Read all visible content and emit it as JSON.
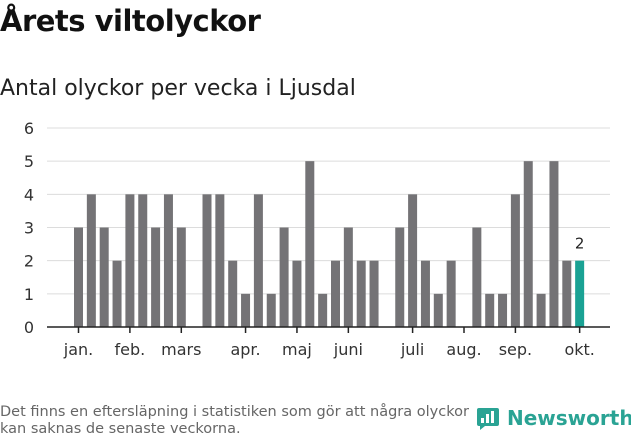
{
  "title": "Årets viltolyckor",
  "subtitle": "Antal olyckor per vecka i Ljusdal",
  "footnote": "Det finns en eftersläpning i statistiken som gör att några olyckor kan saknas de senaste veckorna.",
  "brand": {
    "name": "Newsworthy",
    "icon": "newsworthy-logo-icon",
    "color": "#2aa394"
  },
  "chart_data": {
    "type": "bar",
    "title": "Antal olyckor per vecka i Ljusdal",
    "xlabel": "",
    "ylabel": "",
    "ylim": [
      0,
      6
    ],
    "yticks": [
      0,
      1,
      2,
      3,
      4,
      5,
      6
    ],
    "grid": true,
    "legend": "none",
    "bar_color": "#747376",
    "highlight_color": "#1aa294",
    "highlight_last_label": "2",
    "categories": [
      "1",
      "2",
      "3",
      "4",
      "5",
      "6",
      "7",
      "8",
      "9",
      "10",
      "11",
      "12",
      "13",
      "14",
      "15",
      "16",
      "17",
      "18",
      "19",
      "20",
      "21",
      "22",
      "23",
      "24",
      "25",
      "26",
      "27",
      "28",
      "29",
      "30",
      "31",
      "32",
      "33",
      "34",
      "35",
      "36",
      "37",
      "38",
      "39",
      "40",
      "41"
    ],
    "values": [
      3,
      4,
      3,
      2,
      4,
      4,
      3,
      4,
      3,
      0,
      4,
      4,
      2,
      1,
      4,
      1,
      3,
      2,
      5,
      1,
      2,
      3,
      2,
      2,
      0,
      3,
      4,
      2,
      1,
      2,
      0,
      3,
      1,
      1,
      4,
      5,
      1,
      5,
      2,
      2,
      0
    ],
    "month_labels": [
      {
        "label": "jan.",
        "week": 1
      },
      {
        "label": "feb.",
        "week": 5
      },
      {
        "label": "mars",
        "week": 9
      },
      {
        "label": "apr.",
        "week": 14
      },
      {
        "label": "maj",
        "week": 18
      },
      {
        "label": "juni",
        "week": 22
      },
      {
        "label": "juli",
        "week": 27
      },
      {
        "label": "aug.",
        "week": 31
      },
      {
        "label": "sep.",
        "week": 35
      },
      {
        "label": "okt.",
        "week": 40
      }
    ]
  }
}
